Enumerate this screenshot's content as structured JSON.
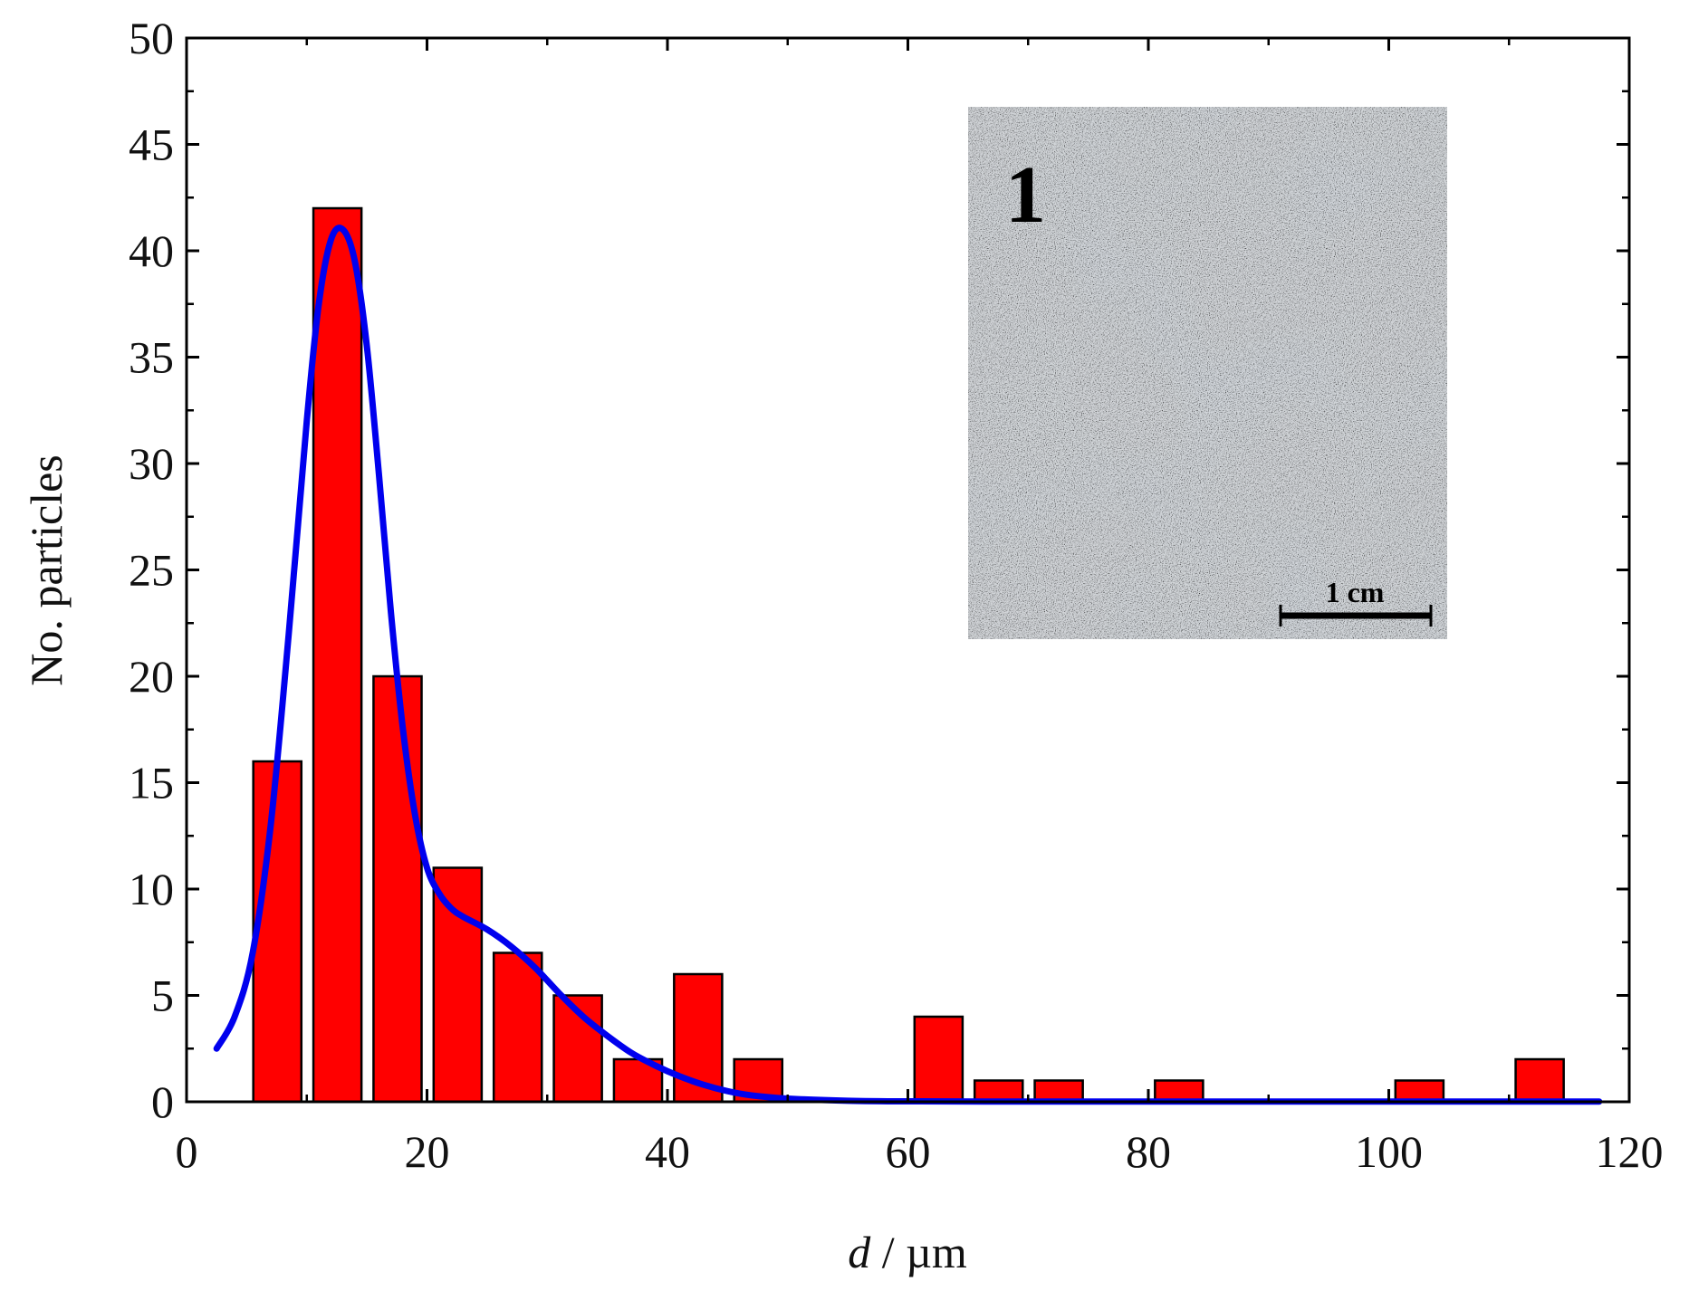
{
  "chart_data": {
    "type": "bar",
    "title": "",
    "xlabel_italic": "d",
    "xlabel_rest": " / µm",
    "ylabel": "No. particles",
    "xlim": [
      0,
      120
    ],
    "ylim": [
      0,
      50
    ],
    "xticks": [
      0,
      20,
      40,
      60,
      80,
      100,
      120
    ],
    "yticks": [
      0,
      5,
      10,
      15,
      20,
      25,
      30,
      35,
      40,
      45,
      50
    ],
    "grid": false,
    "bin_width": 5,
    "bars": [
      {
        "start": 5,
        "count": 16
      },
      {
        "start": 10,
        "count": 42
      },
      {
        "start": 15,
        "count": 20
      },
      {
        "start": 20,
        "count": 11
      },
      {
        "start": 25,
        "count": 7
      },
      {
        "start": 30,
        "count": 5
      },
      {
        "start": 35,
        "count": 2
      },
      {
        "start": 40,
        "count": 6
      },
      {
        "start": 45,
        "count": 2
      },
      {
        "start": 60,
        "count": 4
      },
      {
        "start": 65,
        "count": 1
      },
      {
        "start": 70,
        "count": 1
      },
      {
        "start": 80,
        "count": 1
      },
      {
        "start": 100,
        "count": 1
      },
      {
        "start": 110,
        "count": 2
      }
    ],
    "fit_curve": {
      "x": [
        2.5,
        4,
        5.5,
        7,
        8.5,
        10,
        11,
        12,
        13,
        14,
        15,
        16,
        17,
        18,
        19,
        20,
        21,
        22,
        23,
        25,
        27,
        29,
        31,
        33,
        35,
        37,
        39,
        41,
        43,
        45,
        47,
        50,
        55,
        60,
        70,
        80,
        100,
        117.5
      ],
      "y": [
        2.5,
        4,
        7,
        13,
        22,
        32,
        37.5,
        40.5,
        41,
        39.5,
        35.5,
        29.5,
        23,
        17.5,
        13.5,
        11,
        9.8,
        9.1,
        8.7,
        8.1,
        7.3,
        6.3,
        5.1,
        4,
        3.1,
        2.3,
        1.7,
        1.2,
        0.8,
        0.5,
        0.3,
        0.15,
        0.05,
        0.02,
        0.01,
        0.01,
        0.01,
        0.01
      ]
    },
    "colors": {
      "bar": "#ff0000",
      "curve": "#0000ee"
    },
    "inset": {
      "label": "1",
      "scale_bar": "1 cm"
    }
  }
}
